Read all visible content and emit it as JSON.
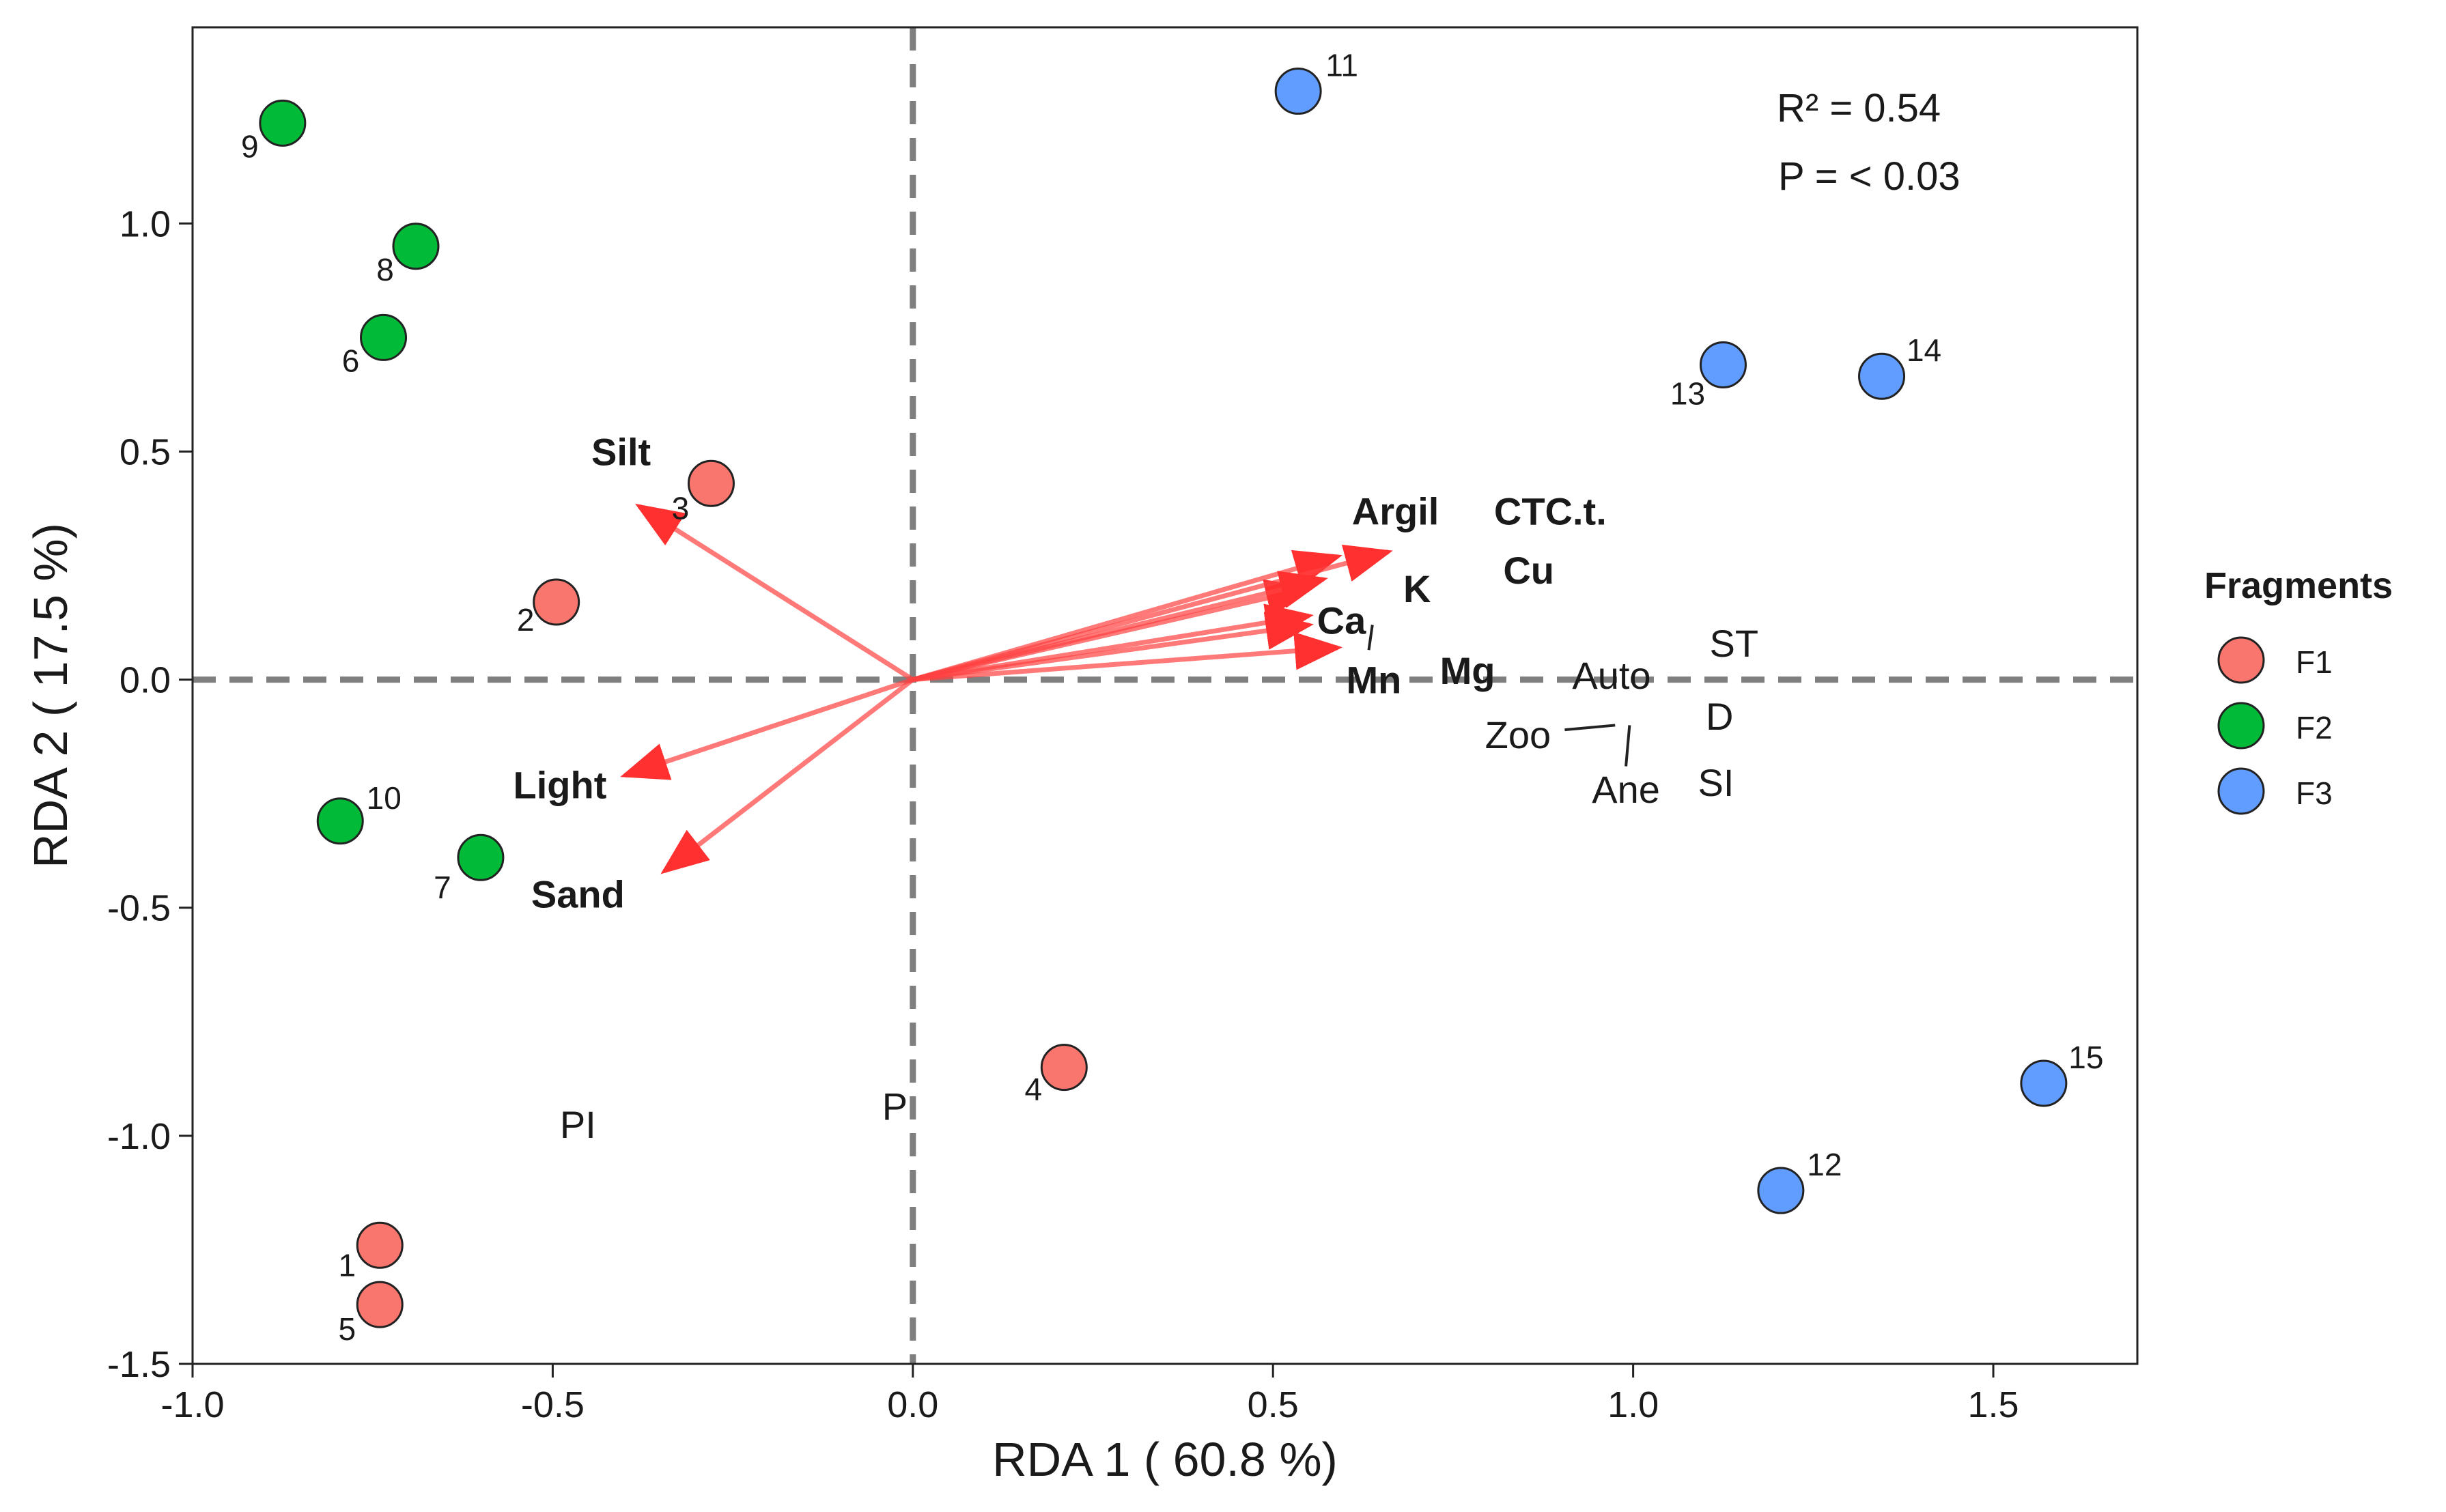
{
  "chart_data": {
    "type": "scatter",
    "xlabel": "RDA 1 ( 60.8 %)",
    "ylabel": "RDA 2 ( 17.5 %)",
    "xlim": [
      -1.0,
      1.7
    ],
    "ylim": [
      -1.5,
      1.43
    ],
    "xticks": [
      -1.0,
      -0.5,
      0.0,
      0.5,
      1.0,
      1.5
    ],
    "xtick_labels": [
      "-1.0",
      "-0.5",
      "0.0",
      "0.5",
      "1.0",
      "1.5"
    ],
    "yticks": [
      -1.5,
      -1.0,
      -0.5,
      0.0,
      0.5,
      1.0
    ],
    "ytick_labels": [
      "-1.5",
      "-1.0",
      "-0.5",
      "0.0",
      "0.5",
      "1.0"
    ],
    "grid": false,
    "reference_lines": {
      "x": 0,
      "y": 0,
      "style": "dashed"
    },
    "annotations": [
      {
        "text": "R² = 0.54"
      },
      {
        "text": "P = < 0.03"
      }
    ],
    "legend": {
      "title": "Fragments",
      "placement": "right",
      "entries": [
        {
          "name": "F1",
          "color": "#F8766D"
        },
        {
          "name": "F2",
          "color": "#00BA38"
        },
        {
          "name": "F3",
          "color": "#619CFF"
        }
      ]
    },
    "series": [
      {
        "name": "F1",
        "color": "#F8766D",
        "points": [
          {
            "label": "1",
            "x": -0.74,
            "y": -1.24
          },
          {
            "label": "2",
            "x": -0.495,
            "y": 0.17
          },
          {
            "label": "3",
            "x": -0.28,
            "y": 0.43
          },
          {
            "label": "4",
            "x": 0.21,
            "y": -0.85
          },
          {
            "label": "5",
            "x": -0.74,
            "y": -1.37
          }
        ]
      },
      {
        "name": "F2",
        "color": "#00BA38",
        "points": [
          {
            "label": "6",
            "x": -0.735,
            "y": 0.75
          },
          {
            "label": "7",
            "x": -0.6,
            "y": -0.39
          },
          {
            "label": "8",
            "x": -0.69,
            "y": 0.95
          },
          {
            "label": "9",
            "x": -0.875,
            "y": 1.22
          },
          {
            "label": "10",
            "x": -0.795,
            "y": -0.31
          }
        ]
      },
      {
        "name": "F3",
        "color": "#619CFF",
        "points": [
          {
            "label": "11",
            "x": 0.535,
            "y": 1.29
          },
          {
            "label": "12",
            "x": 1.205,
            "y": -1.12
          },
          {
            "label": "13",
            "x": 1.125,
            "y": 0.69
          },
          {
            "label": "14",
            "x": 1.345,
            "y": 0.665
          },
          {
            "label": "15",
            "x": 1.57,
            "y": -0.885
          }
        ]
      }
    ],
    "arrows": [
      {
        "label": "Silt",
        "x": -0.38,
        "y": 0.38
      },
      {
        "label": "Light",
        "x": -0.4,
        "y": -0.21
      },
      {
        "label": "Sand",
        "x": -0.345,
        "y": -0.42
      },
      {
        "label": "Argil",
        "x": 0.59,
        "y": 0.27
      },
      {
        "label": "CTC.t.",
        "x": 0.55,
        "y": 0.2
      },
      {
        "label": "K",
        "x": 0.66,
        "y": 0.28
      },
      {
        "label": "Cu",
        "x": 0.57,
        "y": 0.22
      },
      {
        "label": "Ca",
        "x": 0.55,
        "y": 0.14
      },
      {
        "label": "Mg",
        "x": 0.55,
        "y": 0.12
      },
      {
        "label": "Mn",
        "x": 0.59,
        "y": 0.07
      }
    ],
    "species_labels": [
      {
        "label": "ST",
        "x": 1.14,
        "y": 0.08
      },
      {
        "label": "Auto",
        "x": 0.97,
        "y": 0.01
      },
      {
        "label": "D",
        "x": 1.12,
        "y": -0.08
      },
      {
        "label": "Zoo",
        "x": 0.84,
        "y": -0.12
      },
      {
        "label": "Ane",
        "x": 0.99,
        "y": -0.24
      },
      {
        "label": "SI",
        "x": 1.115,
        "y": -0.225
      },
      {
        "label": "PI",
        "x": -0.465,
        "y": -0.975
      },
      {
        "label": "P",
        "x": -0.025,
        "y": -0.935
      }
    ]
  }
}
